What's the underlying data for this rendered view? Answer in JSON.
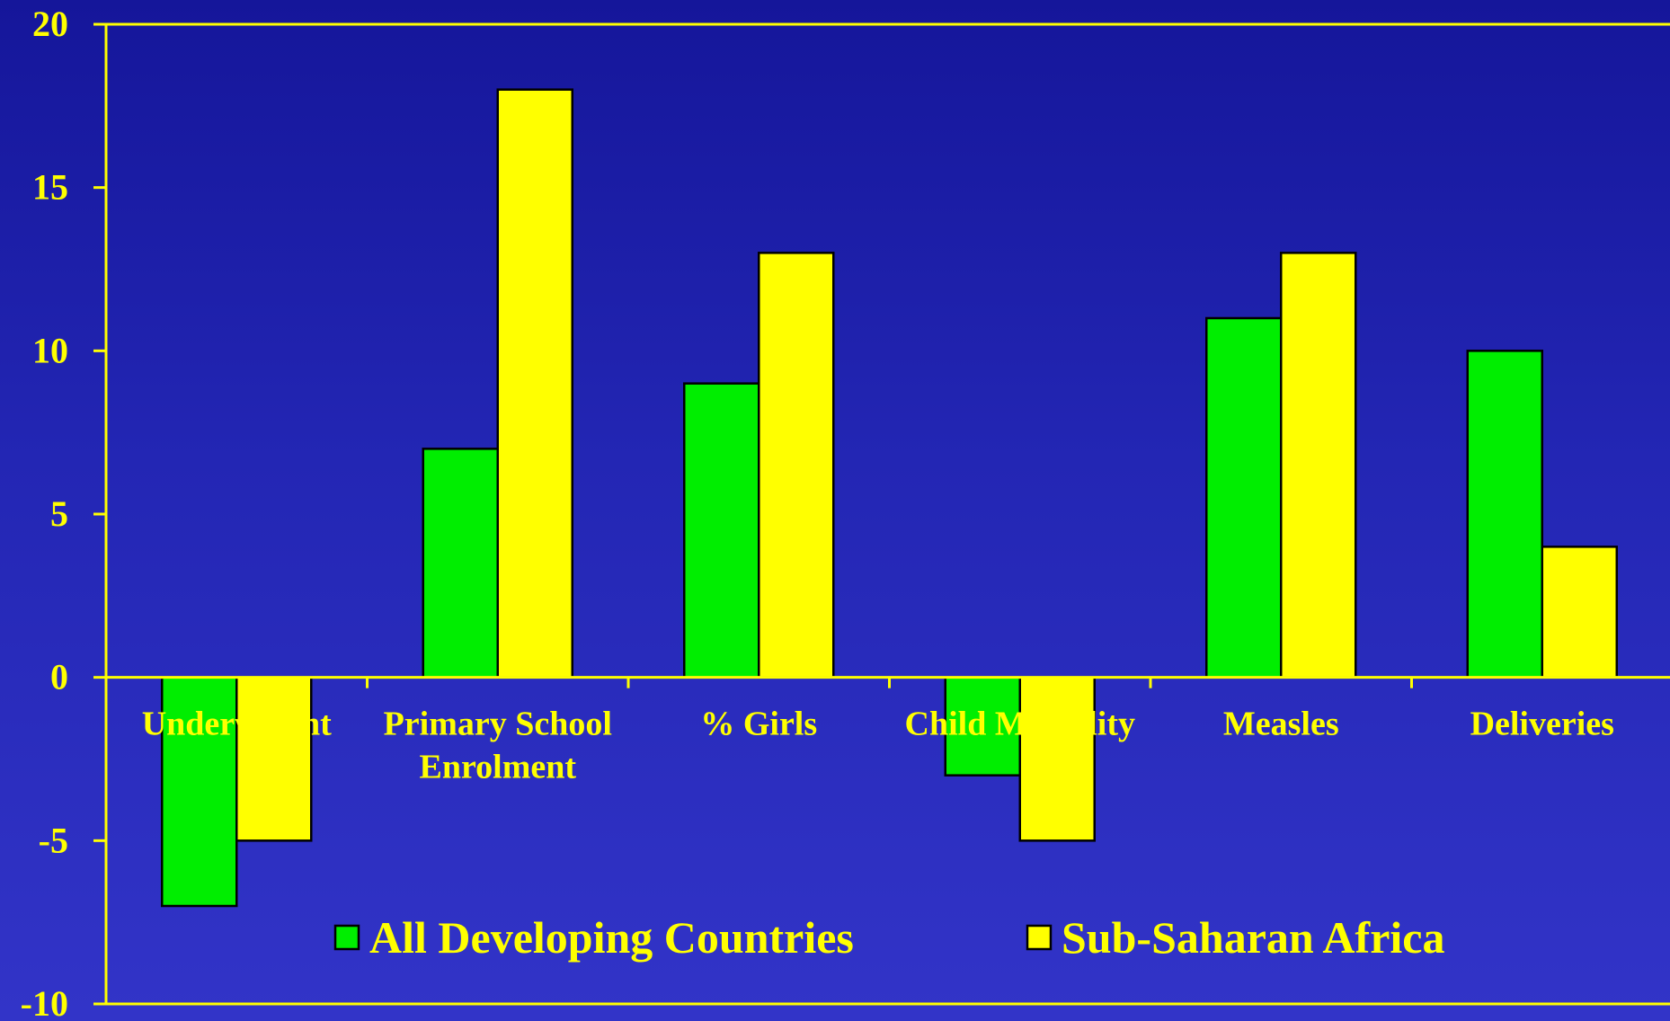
{
  "chart_data": {
    "type": "bar",
    "title": "",
    "xlabel": "",
    "ylabel": "",
    "categories": [
      [
        "Underweight"
      ],
      [
        "Primary School",
        "Enrolment"
      ],
      [
        "% Girls"
      ],
      [
        "Child Mortality"
      ],
      [
        "Measles"
      ],
      [
        "Deliveries"
      ]
    ],
    "series": [
      {
        "name": "All Developing Countries",
        "color": "#00ee00",
        "values": [
          -7,
          7,
          9,
          -3,
          11,
          10
        ]
      },
      {
        "name": "Sub-Saharan Africa",
        "color": "#ffff00",
        "values": [
          -5,
          18,
          13,
          -5,
          13,
          4
        ]
      }
    ],
    "ylim": [
      -10,
      20
    ],
    "yticks": [
      20,
      15,
      10,
      5,
      0,
      -5,
      -10
    ],
    "grid": false,
    "legend_position": "bottom-center",
    "colors": {
      "axis": "#ffff00",
      "text": "#ffff00",
      "bar_outline": "#000000"
    }
  }
}
